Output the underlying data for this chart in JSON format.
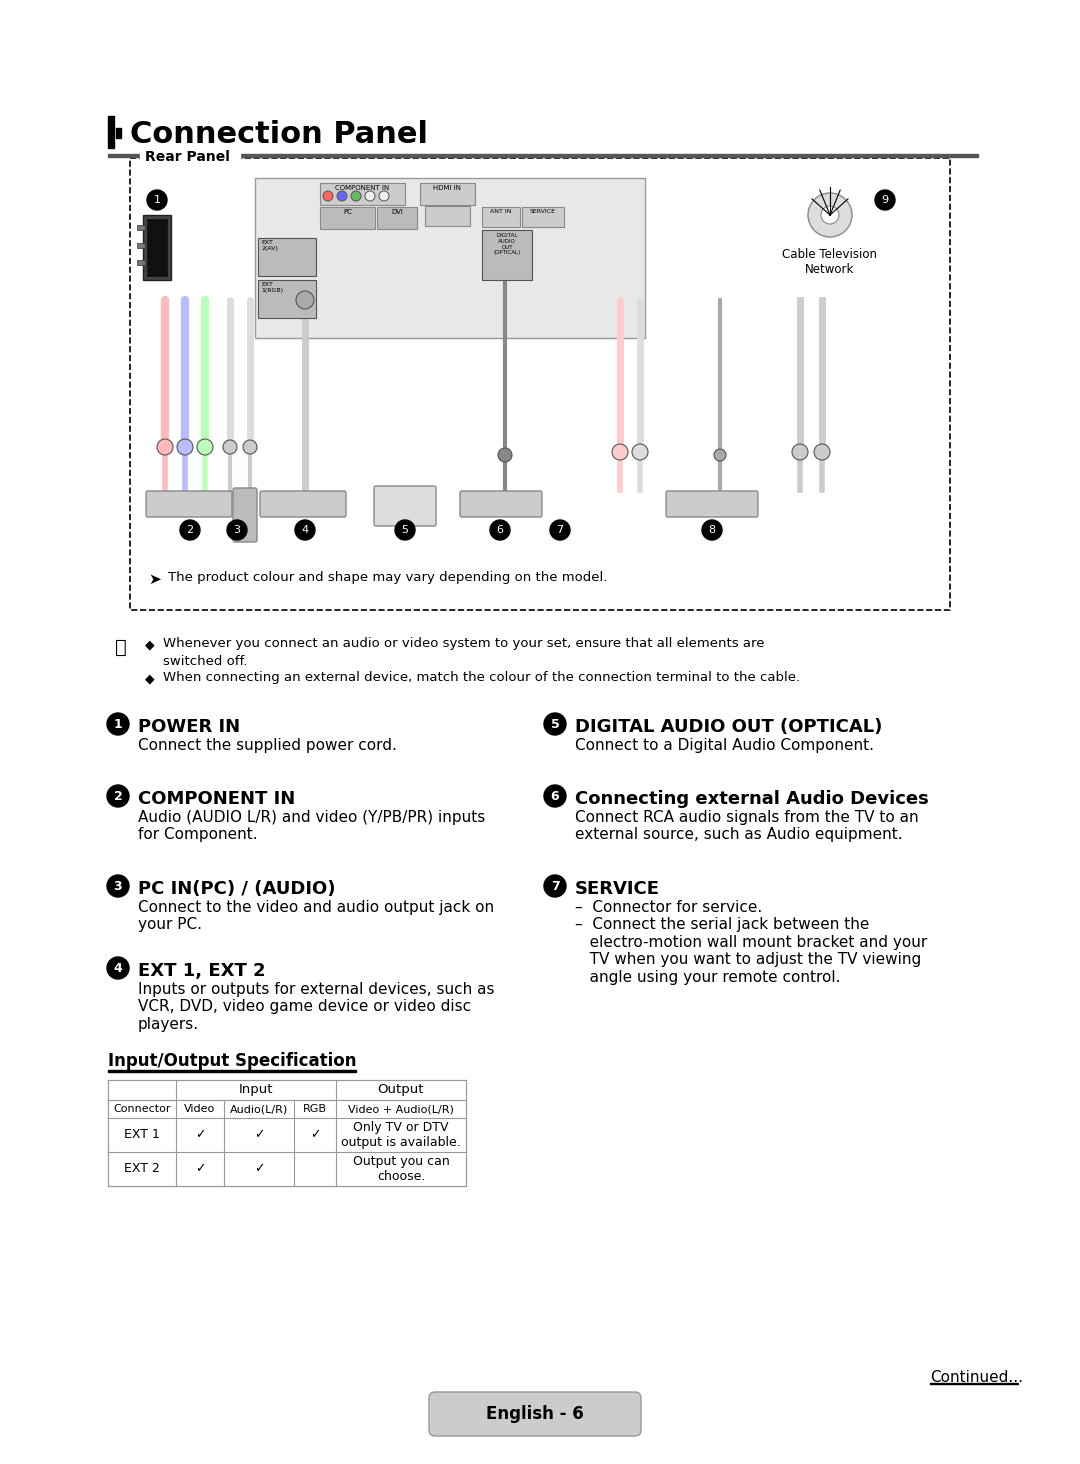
{
  "title": "Connection Panel",
  "bg_color": "#ffffff",
  "title_fontsize": 22,
  "section_header_fontsize": 13,
  "body_fontsize": 11,
  "small_fontsize": 9.5,
  "rear_panel_label": "Rear Panel",
  "note_line1": "Whenever you connect an audio or video system to your set, ensure that all elements are",
  "note_line1b": "switched off.",
  "note_line2": "When connecting an external device, match the colour of the connection terminal to the cable.",
  "items": [
    {
      "num": "1",
      "title": "POWER IN",
      "desc": "Connect the supplied power cord."
    },
    {
      "num": "2",
      "title": "COMPONENT IN",
      "desc": "Audio (AUDIO L/R) and video (Y/PB/PR) inputs\nfor Component."
    },
    {
      "num": "3",
      "title": "PC IN(PC) / (AUDIO)",
      "desc": "Connect to the video and audio output jack on\nyour PC."
    },
    {
      "num": "4",
      "title": "EXT 1, EXT 2",
      "desc": "Inputs or outputs for external devices, such as\nVCR, DVD, video game device or video disc\nplayers."
    }
  ],
  "items_right": [
    {
      "num": "5",
      "title": "DIGITAL AUDIO OUT (OPTICAL)",
      "desc": "Connect to a Digital Audio Component."
    },
    {
      "num": "6",
      "title": "Connecting external Audio Devices",
      "desc": "Connect RCA audio signals from the TV to an\nexternal source, such as Audio equipment."
    },
    {
      "num": "7",
      "title": "SERVICE",
      "desc": "–  Connector for service.\n–  Connect the serial jack between the\n   electro-motion wall mount bracket and your\n   TV when you want to adjust the TV viewing\n   angle using your remote control."
    }
  ],
  "table_title": "Input/Output Specification",
  "table_headers_sub": [
    "Connector",
    "Video",
    "Audio(L/R)",
    "RGB",
    "Video + Audio(L/R)"
  ],
  "table_rows": [
    [
      "EXT 1",
      "✓",
      "✓",
      "✓",
      "Only TV or DTV\noutput is available."
    ],
    [
      "EXT 2",
      "✓",
      "✓",
      "",
      "Output you can\nchoose."
    ]
  ],
  "footer_text": "Continued...",
  "page_text": "English - 6",
  "cable_tv_label": "Cable Television\nNetwork",
  "note_arrow": "➤",
  "note_diamond": "◆",
  "product_note": "The product colour and shape may vary depending on the model."
}
